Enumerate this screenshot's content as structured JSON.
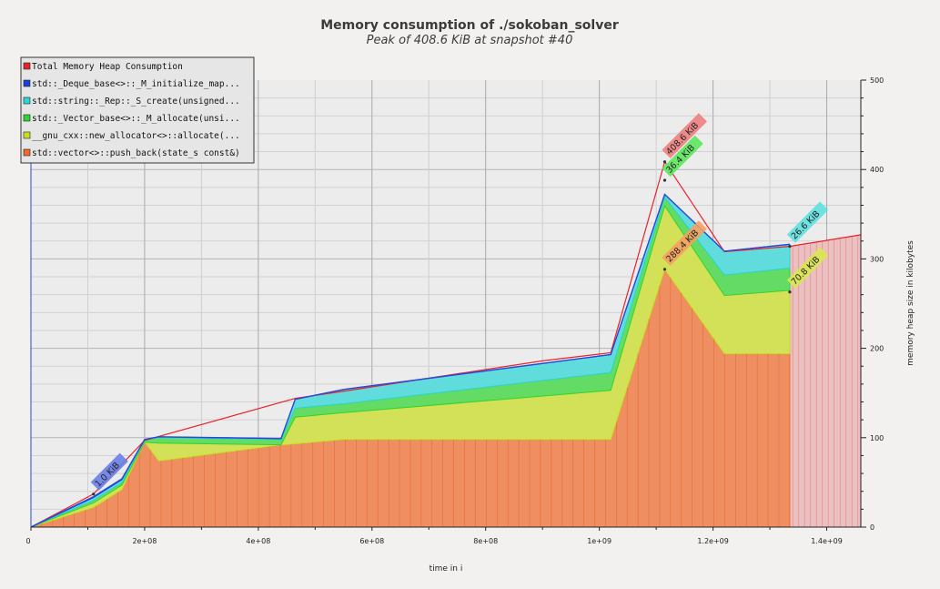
{
  "chart_data": {
    "type": "area",
    "title": "Memory consumption of ./sokoban_solver",
    "subtitle": "Peak of 408.6 KiB at snapshot #40",
    "xlabel": "time in i",
    "ylabel": "memory heap size in kilobytes",
    "xlim": [
      0,
      1460000000
    ],
    "ylim": [
      0,
      500
    ],
    "x_ticks": [
      {
        "value": 0,
        "label": "0"
      },
      {
        "value": 200000000,
        "label": "2e+08"
      },
      {
        "value": 400000000,
        "label": "4e+08"
      },
      {
        "value": 600000000,
        "label": "6e+08"
      },
      {
        "value": 800000000,
        "label": "8e+08"
      },
      {
        "value": 1000000000,
        "label": "1e+09"
      },
      {
        "value": 1200000000,
        "label": "1.2e+09"
      },
      {
        "value": 1400000000,
        "label": "1.4e+09"
      }
    ],
    "y_ticks": [
      {
        "value": 0,
        "label": "0"
      },
      {
        "value": 100,
        "label": "100"
      },
      {
        "value": 200,
        "label": "200"
      },
      {
        "value": 300,
        "label": "300"
      },
      {
        "value": 400,
        "label": "400"
      },
      {
        "value": 500,
        "label": "500"
      }
    ],
    "grid": true,
    "legend_position": "top-left",
    "x": [
      0,
      110000000,
      160000000,
      200000000,
      225000000,
      440000000,
      465000000,
      550000000,
      1020000000,
      1115000000,
      1220000000,
      1335000000
    ],
    "total": {
      "name": "Total Memory Heap Consumption",
      "color": "#e8222a",
      "x": [
        0,
        110000000,
        200000000,
        465000000,
        550000000,
        900000000,
        1020000000,
        1115000000,
        1220000000,
        1335000000,
        1460000000
      ],
      "values": [
        0,
        37,
        97,
        144,
        152,
        186,
        195,
        408.6,
        308,
        314,
        327
      ]
    },
    "series": [
      {
        "name": "std::vector<>::push_back(state_s const&)",
        "color": "#f06a2a",
        "values": [
          0,
          22,
          42,
          95,
          74,
          92,
          93,
          98,
          98,
          288.4,
          194,
          194
        ]
      },
      {
        "name": "__gnu_cxx::new_allocator<>::allocate(...",
        "color": "#c8dd1e",
        "values": [
          0,
          5,
          5,
          0,
          20,
          0,
          30,
          30,
          55,
          70.8,
          65,
          70.8
        ]
      },
      {
        "name": "std::_Vector_base<>::_M_allocate(unsi...",
        "color": "#2fd52f",
        "values": [
          0,
          3,
          3,
          3,
          6,
          6,
          10,
          10,
          20,
          10,
          23,
          25
        ]
      },
      {
        "name": "std::string::_Rep::_S_create(unsigned...",
        "color": "#2ad6d6",
        "values": [
          0,
          3,
          3,
          0,
          1,
          1,
          10,
          16,
          20,
          3,
          26.6,
          26.6
        ]
      },
      {
        "name": "std::_Deque_base<>::_M_initialize_map...",
        "color": "#1d3fd6",
        "values": [
          0,
          1,
          1,
          0,
          0,
          0,
          0,
          0,
          0,
          0,
          0,
          0
        ]
      }
    ],
    "legend": [
      {
        "label": "Total Memory Heap Consumption",
        "color": "#e8222a"
      },
      {
        "label": "std::_Deque_base<>::_M_initialize_map...",
        "color": "#1d3fd6"
      },
      {
        "label": "std::string::_Rep::_S_create(unsigned...",
        "color": "#2ad6d6"
      },
      {
        "label": "std::_Vector_base<>::_M_allocate(unsi...",
        "color": "#2fd52f"
      },
      {
        "label": "__gnu_cxx::new_allocator<>::allocate(...",
        "color": "#c8dd1e"
      },
      {
        "label": "std::vector<>::push_back(state_s const&)",
        "color": "#f06a2a"
      }
    ],
    "annotations": [
      {
        "text": "408.6 KiB",
        "x": 1115000000,
        "y": 408.6,
        "color": "#f08080"
      },
      {
        "text": "36.4 KiB",
        "x": 1115000000,
        "y": 388,
        "color": "#5de85d"
      },
      {
        "text": "288.4 KiB",
        "x": 1115000000,
        "y": 288.4,
        "color": "#f5a060"
      },
      {
        "text": "1.0 KiB",
        "x": 110000000,
        "y": 37,
        "color": "#6a80e8"
      },
      {
        "text": "26.6 KiB",
        "x": 1335000000,
        "y": 314,
        "color": "#60e0e0"
      },
      {
        "text": "70.8 KiB",
        "x": 1335000000,
        "y": 263,
        "color": "#d8e850"
      }
    ]
  }
}
